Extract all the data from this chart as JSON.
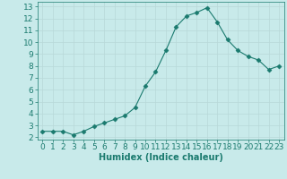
{
  "title": "",
  "xlabel": "Humidex (Indice chaleur)",
  "ylabel": "",
  "x": [
    0,
    1,
    2,
    3,
    4,
    5,
    6,
    7,
    8,
    9,
    10,
    11,
    12,
    13,
    14,
    15,
    16,
    17,
    18,
    19,
    20,
    21,
    22,
    23
  ],
  "y": [
    2.5,
    2.5,
    2.5,
    2.2,
    2.5,
    2.9,
    3.2,
    3.5,
    3.8,
    4.5,
    6.3,
    7.5,
    9.3,
    11.3,
    12.2,
    12.5,
    12.9,
    11.7,
    10.2,
    9.3,
    8.8,
    8.5,
    7.7,
    8.0
  ],
  "line_color": "#1a7a6e",
  "marker": "D",
  "marker_size": 2.5,
  "bg_color": "#c8eaea",
  "grid_color": "#b8d8d8",
  "plot_bg": "#c8eaea",
  "tick_color": "#1a7a6e",
  "label_color": "#1a7a6e",
  "ylim": [
    1.8,
    13.4
  ],
  "xlim": [
    -0.5,
    23.5
  ],
  "yticks": [
    2,
    3,
    4,
    5,
    6,
    7,
    8,
    9,
    10,
    11,
    12,
    13
  ],
  "xticks": [
    0,
    1,
    2,
    3,
    4,
    5,
    6,
    7,
    8,
    9,
    10,
    11,
    12,
    13,
    14,
    15,
    16,
    17,
    18,
    19,
    20,
    21,
    22,
    23
  ],
  "xlabel_fontsize": 7,
  "tick_fontsize": 6.5
}
